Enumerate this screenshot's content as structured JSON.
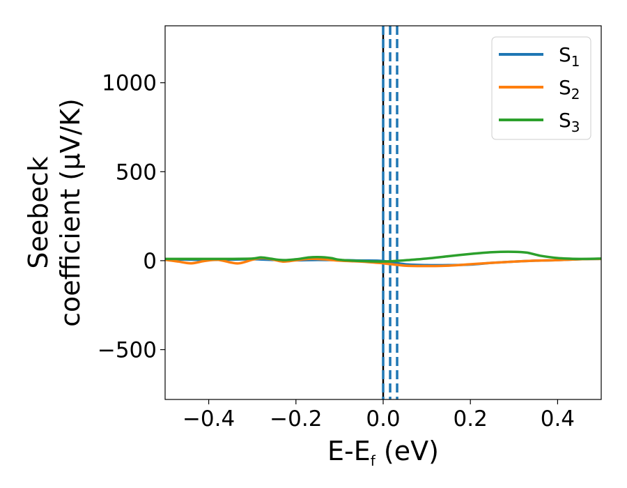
{
  "chart_data": {
    "type": "line",
    "title": "",
    "xlabel": {
      "main": "E-E",
      "sub": "f",
      "unit": " (eV)"
    },
    "ylabel": {
      "line1": "Seebeck",
      "line2": "coefficient  (μV/K)"
    },
    "xlim": [
      -0.5,
      0.5
    ],
    "ylim": [
      -780,
      1320
    ],
    "xticks": [
      -0.4,
      -0.2,
      0.0,
      0.2,
      0.4
    ],
    "xtick_labels": [
      "−0.4",
      "−0.2",
      "0.0",
      "0.2",
      "0.4"
    ],
    "yticks": [
      -500,
      0,
      500,
      1000
    ],
    "ytick_labels": [
      "−500",
      "0",
      "500",
      "1000"
    ],
    "grid": false,
    "legend_position": "top-right",
    "series": [
      {
        "name": "S1",
        "label_main": "S",
        "label_sub": "1",
        "color": "#1f77b4",
        "x": [
          -0.5,
          -0.45,
          -0.4,
          -0.35,
          -0.3,
          -0.25,
          -0.2,
          -0.15,
          -0.1,
          -0.05,
          0.0,
          0.05,
          0.1,
          0.15,
          0.2,
          0.25,
          0.3,
          0.35,
          0.4,
          0.45,
          0.5
        ],
        "y": [
          8,
          6,
          4,
          6,
          8,
          4,
          2,
          4,
          3,
          1,
          -2,
          -20,
          -25,
          -25,
          -22,
          -12,
          -5,
          0,
          3,
          8,
          10
        ]
      },
      {
        "name": "S2",
        "label_main": "S",
        "label_sub": "2",
        "color": "#ff7f0e",
        "x": [
          -0.5,
          -0.47,
          -0.44,
          -0.41,
          -0.38,
          -0.35,
          -0.33,
          -0.3,
          -0.28,
          -0.26,
          -0.23,
          -0.2,
          -0.17,
          -0.14,
          -0.1,
          -0.05,
          0.0,
          0.05,
          0.1,
          0.15,
          0.2,
          0.25,
          0.3,
          0.35,
          0.4,
          0.45,
          0.5
        ],
        "y": [
          5,
          -5,
          -15,
          -2,
          5,
          -10,
          -15,
          5,
          15,
          10,
          -5,
          2,
          10,
          8,
          0,
          -5,
          -15,
          -28,
          -30,
          -28,
          -20,
          -12,
          -5,
          0,
          3,
          8,
          10
        ]
      },
      {
        "name": "S3",
        "label_main": "S",
        "label_sub": "3",
        "color": "#2ca02c",
        "x": [
          -0.5,
          -0.45,
          -0.4,
          -0.35,
          -0.3,
          -0.28,
          -0.26,
          -0.23,
          -0.2,
          -0.17,
          -0.15,
          -0.12,
          -0.1,
          -0.05,
          0.0,
          0.05,
          0.1,
          0.15,
          0.2,
          0.25,
          0.3,
          0.33,
          0.36,
          0.4,
          0.45,
          0.5
        ],
        "y": [
          10,
          10,
          10,
          10,
          12,
          18,
          12,
          3,
          8,
          18,
          20,
          15,
          5,
          -2,
          -5,
          2,
          12,
          25,
          38,
          48,
          50,
          45,
          28,
          15,
          10,
          12
        ]
      }
    ],
    "vlines": [
      {
        "x": 0.0,
        "style": "solid",
        "color": "#000000"
      },
      {
        "x": 0.0,
        "style": "dashed",
        "color": "#1f77b4"
      },
      {
        "x": 0.016,
        "style": "dashed",
        "color": "#1f77b4"
      },
      {
        "x": 0.032,
        "style": "dashed",
        "color": "#1f77b4"
      }
    ]
  }
}
